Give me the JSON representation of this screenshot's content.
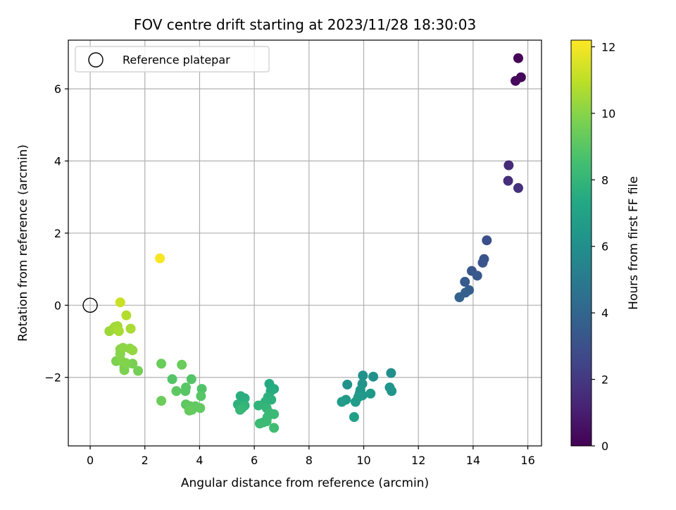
{
  "chart_data": {
    "type": "scatter",
    "title": "FOV centre drift starting at 2023/11/28 18:30:03",
    "xlabel": "Angular distance from reference (arcmin)",
    "ylabel": "Rotation from reference (arcmin)",
    "xlim": [
      -0.8,
      16.5
    ],
    "ylim": [
      -3.9,
      7.35
    ],
    "x_ticks": [
      0,
      2,
      4,
      6,
      8,
      10,
      12,
      14,
      16
    ],
    "y_ticks": [
      -2,
      0,
      2,
      4,
      6
    ],
    "grid": true,
    "legend": {
      "location": "top-left",
      "entries": [
        "Reference platepar"
      ]
    },
    "reference_point": {
      "x": 0,
      "y": 0
    },
    "colorbar": {
      "label": "Hours from first FF file",
      "colormap": "viridis",
      "range": [
        0,
        12.2
      ],
      "ticks": [
        0,
        2,
        4,
        6,
        8,
        10,
        12
      ]
    },
    "points": [
      [
        15.65,
        6.85,
        0.1
      ],
      [
        15.75,
        6.32,
        0.2
      ],
      [
        15.55,
        6.22,
        0.3
      ],
      [
        15.3,
        3.88,
        1.5
      ],
      [
        15.28,
        3.45,
        1.6
      ],
      [
        15.65,
        3.25,
        1.7
      ],
      [
        14.5,
        1.8,
        3.0
      ],
      [
        14.4,
        1.28,
        3.1
      ],
      [
        14.35,
        1.18,
        3.2
      ],
      [
        13.95,
        0.95,
        3.3
      ],
      [
        14.15,
        0.82,
        3.4
      ],
      [
        13.7,
        0.65,
        3.5
      ],
      [
        13.85,
        0.42,
        3.6
      ],
      [
        13.72,
        0.35,
        3.7
      ],
      [
        13.5,
        0.22,
        3.8
      ],
      [
        11.0,
        -1.88,
        6.0
      ],
      [
        10.35,
        -1.98,
        6.1
      ],
      [
        9.97,
        -1.95,
        6.1
      ],
      [
        9.4,
        -2.2,
        6.2
      ],
      [
        9.95,
        -2.18,
        6.2
      ],
      [
        10.95,
        -2.28,
        6.3
      ],
      [
        11.02,
        -2.38,
        6.3
      ],
      [
        9.88,
        -2.35,
        6.4
      ],
      [
        9.85,
        -2.45,
        6.4
      ],
      [
        10.25,
        -2.45,
        6.5
      ],
      [
        9.95,
        -2.5,
        6.5
      ],
      [
        9.8,
        -2.55,
        6.6
      ],
      [
        9.35,
        -2.62,
        6.6
      ],
      [
        9.2,
        -2.68,
        6.7
      ],
      [
        9.7,
        -2.68,
        6.7
      ],
      [
        9.65,
        -3.1,
        6.8
      ],
      [
        6.55,
        -2.18,
        7.4
      ],
      [
        6.72,
        -2.32,
        7.5
      ],
      [
        6.6,
        -2.38,
        7.5
      ],
      [
        5.5,
        -2.52,
        7.6
      ],
      [
        5.65,
        -2.58,
        7.6
      ],
      [
        6.5,
        -2.55,
        7.7
      ],
      [
        6.62,
        -2.62,
        7.7
      ],
      [
        6.4,
        -2.68,
        7.8
      ],
      [
        5.4,
        -2.75,
        7.8
      ],
      [
        5.65,
        -2.78,
        7.9
      ],
      [
        6.15,
        -2.78,
        7.9
      ],
      [
        6.45,
        -2.85,
        8.0
      ],
      [
        5.55,
        -2.85,
        8.0
      ],
      [
        5.48,
        -2.9,
        8.1
      ],
      [
        6.55,
        -2.98,
        8.1
      ],
      [
        6.72,
        -3.02,
        8.2
      ],
      [
        6.48,
        -3.1,
        8.2
      ],
      [
        6.45,
        -3.22,
        8.3
      ],
      [
        6.2,
        -3.28,
        8.3
      ],
      [
        6.32,
        -3.25,
        8.3
      ],
      [
        6.72,
        -3.4,
        8.4
      ],
      [
        4.08,
        -2.32,
        8.8
      ],
      [
        3.7,
        -2.05,
        8.9
      ],
      [
        3.0,
        -2.05,
        8.9
      ],
      [
        4.05,
        -2.52,
        9.0
      ],
      [
        3.5,
        -2.28,
        9.0
      ],
      [
        3.48,
        -2.38,
        9.0
      ],
      [
        3.15,
        -2.38,
        9.1
      ],
      [
        3.5,
        -2.75,
        9.1
      ],
      [
        3.65,
        -2.8,
        9.2
      ],
      [
        3.85,
        -2.8,
        9.2
      ],
      [
        4.02,
        -2.85,
        9.2
      ],
      [
        3.72,
        -2.9,
        9.2
      ],
      [
        3.62,
        -2.92,
        9.3
      ],
      [
        2.6,
        -1.62,
        9.4
      ],
      [
        3.35,
        -1.65,
        9.4
      ],
      [
        2.6,
        -2.65,
        9.4
      ],
      [
        1.75,
        -1.82,
        9.6
      ],
      [
        1.55,
        -1.62,
        9.7
      ],
      [
        1.25,
        -1.72,
        9.7
      ],
      [
        1.25,
        -1.8,
        9.8
      ],
      [
        0.95,
        -1.55,
        9.8
      ],
      [
        1.15,
        -1.55,
        9.9
      ],
      [
        1.3,
        -1.6,
        9.9
      ],
      [
        1.1,
        -1.35,
        10.0
      ],
      [
        1.1,
        -1.22,
        10.0
      ],
      [
        1.2,
        -1.18,
        10.1
      ],
      [
        1.45,
        -1.2,
        10.1
      ],
      [
        1.55,
        -1.25,
        10.2
      ],
      [
        0.7,
        -0.72,
        10.4
      ],
      [
        0.85,
        -0.65,
        10.4
      ],
      [
        0.9,
        -0.6,
        10.5
      ],
      [
        1.0,
        -0.58,
        10.5
      ],
      [
        1.05,
        -0.72,
        10.6
      ],
      [
        1.48,
        -0.65,
        10.6
      ],
      [
        1.32,
        -0.28,
        10.8
      ],
      [
        1.1,
        0.08,
        11.2
      ],
      [
        2.55,
        1.3,
        12.1
      ]
    ]
  }
}
